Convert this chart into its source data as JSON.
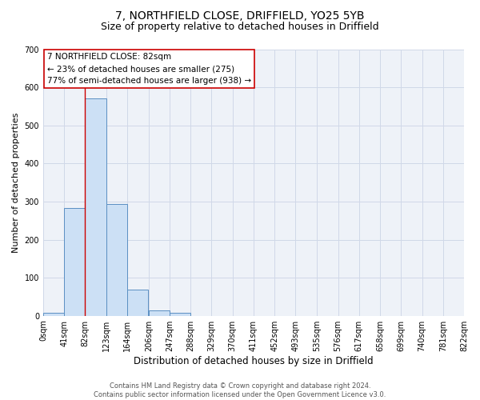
{
  "title1": "7, NORTHFIELD CLOSE, DRIFFIELD, YO25 5YB",
  "title2": "Size of property relative to detached houses in Driffield",
  "xlabel": "Distribution of detached houses by size in Driffield",
  "ylabel": "Number of detached properties",
  "bin_edges": [
    0,
    41,
    82,
    123,
    164,
    206,
    247,
    288,
    329,
    370,
    411,
    452,
    493,
    535,
    576,
    617,
    658,
    699,
    740,
    781,
    822
  ],
  "bin_counts": [
    8,
    282,
    570,
    293,
    68,
    15,
    8,
    0,
    0,
    0,
    0,
    0,
    0,
    0,
    0,
    0,
    0,
    0,
    0,
    0
  ],
  "bar_facecolor": "#cce0f5",
  "bar_edgecolor": "#5a8fc2",
  "vline_x": 82,
  "vline_color": "#cc0000",
  "annotation_line1": "7 NORTHFIELD CLOSE: 82sqm",
  "annotation_line2": "← 23% of detached houses are smaller (275)",
  "annotation_line3": "77% of semi-detached houses are larger (938) →",
  "tick_labels": [
    "0sqm",
    "41sqm",
    "82sqm",
    "123sqm",
    "164sqm",
    "206sqm",
    "247sqm",
    "288sqm",
    "329sqm",
    "370sqm",
    "411sqm",
    "452sqm",
    "493sqm",
    "535sqm",
    "576sqm",
    "617sqm",
    "658sqm",
    "699sqm",
    "740sqm",
    "781sqm",
    "822sqm"
  ],
  "ylim": [
    0,
    700
  ],
  "yticks": [
    0,
    100,
    200,
    300,
    400,
    500,
    600,
    700
  ],
  "grid_color": "#d0d8e8",
  "background_color": "#eef2f8",
  "footer_text": "Contains HM Land Registry data © Crown copyright and database right 2024.\nContains public sector information licensed under the Open Government Licence v3.0.",
  "title1_fontsize": 10,
  "title2_fontsize": 9,
  "xlabel_fontsize": 8.5,
  "ylabel_fontsize": 8,
  "tick_fontsize": 7,
  "annotation_fontsize": 7.5,
  "footer_fontsize": 6
}
